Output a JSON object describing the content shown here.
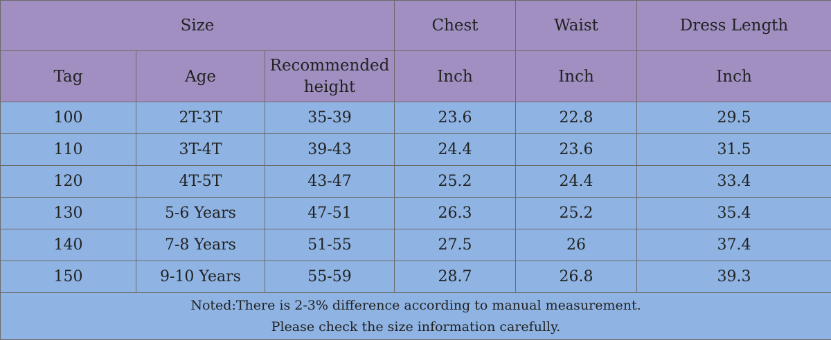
{
  "header_top": {
    "size": "Size",
    "chest": "Chest",
    "waist": "Waist",
    "dress_length": "Dress Length"
  },
  "header_sub": {
    "tag": "Tag",
    "age": "Age",
    "recommended_line1": "Recommended",
    "recommended_line2": "height",
    "chest_unit": "Inch",
    "waist_unit": "Inch",
    "dress_length_unit": "Inch"
  },
  "rows": [
    {
      "tag": "100",
      "age": "2T-3T",
      "height": "35-39",
      "chest": "23.6",
      "waist": "22.8",
      "length": "29.5"
    },
    {
      "tag": "110",
      "age": "3T-4T",
      "height": "39-43",
      "chest": "24.4",
      "waist": "23.6",
      "length": "31.5"
    },
    {
      "tag": "120",
      "age": "4T-5T",
      "height": "43-47",
      "chest": "25.2",
      "waist": "24.4",
      "length": "33.4"
    },
    {
      "tag": "130",
      "age": "5-6 Years",
      "height": "47-51",
      "chest": "26.3",
      "waist": "25.2",
      "length": "35.4"
    },
    {
      "tag": "140",
      "age": "7-8 Years",
      "height": "51-55",
      "chest": "27.5",
      "waist": "26",
      "length": "37.4"
    },
    {
      "tag": "150",
      "age": "9-10 Years",
      "height": "55-59",
      "chest": "28.7",
      "waist": "26.8",
      "length": "39.3"
    }
  ],
  "note": {
    "line1": "Noted:There is 2-3% difference according to manual measurement.",
    "line2": "Please check the size information carefully."
  },
  "colors": {
    "header_bg": "#a18fc1",
    "body_bg": "#8fb4e3",
    "border": "#6a6a6a",
    "text": "#222222"
  }
}
